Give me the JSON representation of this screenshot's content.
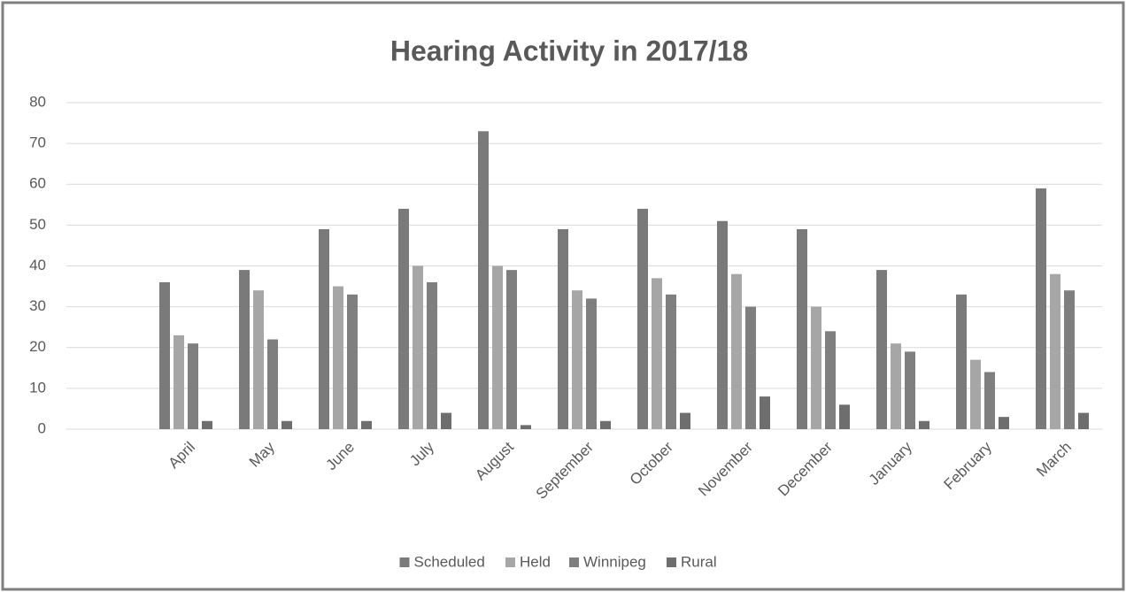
{
  "chart_data": {
    "type": "bar",
    "title": "Hearing Activity in 2017/18",
    "categories": [
      null,
      "April",
      "May",
      "June",
      "July",
      "August",
      "September",
      "October",
      "November",
      "December",
      "January",
      "February",
      "March"
    ],
    "series": [
      {
        "name": "Scheduled",
        "color": "#7a7a7a",
        "values": [
          null,
          36,
          39,
          49,
          54,
          73,
          49,
          54,
          51,
          49,
          39,
          33,
          59
        ]
      },
      {
        "name": "Held",
        "color": "#a6a6a6",
        "values": [
          null,
          23,
          34,
          35,
          40,
          40,
          34,
          37,
          38,
          30,
          21,
          17,
          38
        ]
      },
      {
        "name": "Winnipeg",
        "color": "#7f7f7f",
        "values": [
          null,
          21,
          22,
          33,
          36,
          39,
          32,
          33,
          30,
          24,
          19,
          14,
          34
        ]
      },
      {
        "name": "Rural",
        "color": "#6e6e6e",
        "values": [
          null,
          2,
          2,
          2,
          4,
          1,
          2,
          4,
          8,
          6,
          2,
          3,
          4
        ]
      }
    ],
    "ylim": [
      0,
      80
    ],
    "yticks": [
      0,
      10,
      20,
      30,
      40,
      50,
      60,
      70,
      80
    ],
    "grid": true,
    "legend": "bottom"
  }
}
